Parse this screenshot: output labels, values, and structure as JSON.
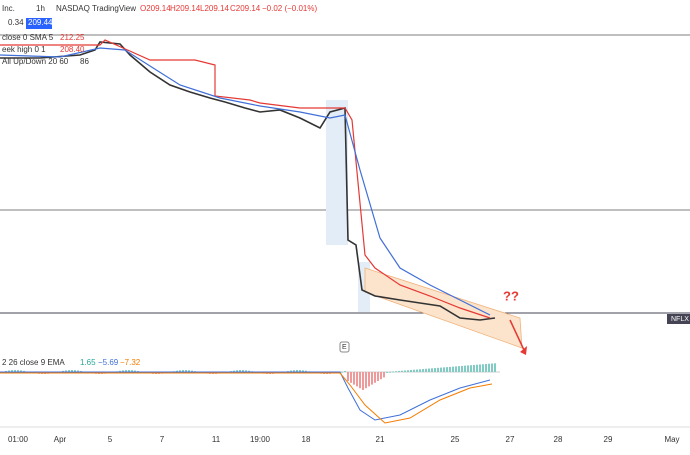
{
  "header": {
    "symbol": "Inc.",
    "interval": "1h",
    "exchange": "NASDAQ",
    "source": "TradingView",
    "open": "O209.14",
    "high": "H209.14",
    "low": "L209.14",
    "close": "C209.14",
    "change": "−0.02 (−0.01%)",
    "spread": "0.34",
    "ask": "209.44"
  },
  "indicators": [
    {
      "label": "close 0 SMA 5",
      "value": "212.25"
    },
    {
      "label": "eek high 0 1",
      "value": "208.40"
    },
    {
      "label": "All Up/Down 20 60",
      "value": "86"
    }
  ],
  "macd": {
    "label": "2 26 close 9 EMA",
    "values": [
      "1.65",
      "−5.69",
      "−7.32"
    ]
  },
  "x_axis": [
    "01:00",
    "Apr",
    "5",
    "7",
    "11",
    "19:00",
    "18",
    "21",
    "25",
    "27",
    "28",
    "29",
    "May"
  ],
  "annotations": {
    "question": "??",
    "symbol_tag": "NFLX",
    "earnings": "E"
  }
}
